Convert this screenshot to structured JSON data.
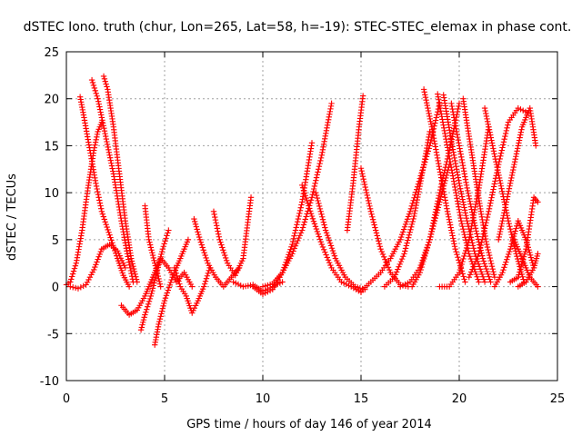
{
  "chart_data": {
    "type": "scatter",
    "title": "dSTEC Iono. truth (chur, Lon=265, Lat=58, h=-19): STEC-STEC_elemax in phase cont.",
    "xlabel": "GPS time / hours of day 146 of year 2014",
    "ylabel": "dSTEC  / TECUs",
    "xlim": [
      0,
      25
    ],
    "ylim": [
      -10,
      25
    ],
    "x_ticks": [
      0,
      5,
      10,
      15,
      20,
      25
    ],
    "y_ticks": [
      -10,
      -5,
      0,
      5,
      10,
      15,
      20,
      25
    ],
    "grid": true,
    "marker": "plus",
    "color": "#ff0000",
    "arcs": [
      {
        "x": [
          0.0,
          0.2,
          0.5,
          0.8,
          1.1,
          1.4,
          1.6,
          1.8
        ],
        "y": [
          0.2,
          0.5,
          2.5,
          6.0,
          10.5,
          14.5,
          16.5,
          17.5
        ]
      },
      {
        "x": [
          0.7,
          0.9,
          1.2,
          1.5,
          1.8,
          2.2,
          2.6,
          2.9,
          3.2
        ],
        "y": [
          20.2,
          18.0,
          14.5,
          11.0,
          8.0,
          5.5,
          3.0,
          1.2,
          0.0
        ]
      },
      {
        "x": [
          1.3,
          1.6,
          2.0,
          2.4,
          2.8,
          3.1,
          3.4
        ],
        "y": [
          22.0,
          20.0,
          16.0,
          12.0,
          7.0,
          3.5,
          0.5
        ]
      },
      {
        "x": [
          1.9,
          2.1,
          2.4,
          2.7,
          3.0,
          3.3,
          3.6
        ],
        "y": [
          22.4,
          21.0,
          17.0,
          12.0,
          7.0,
          3.0,
          0.5
        ]
      },
      {
        "x": [
          0.2,
          0.6,
          1.0,
          1.4,
          1.8,
          2.2,
          2.6,
          3.0
        ],
        "y": [
          0.0,
          -0.2,
          0.2,
          1.8,
          4.0,
          4.5,
          3.8,
          2.0
        ]
      },
      {
        "x": [
          2.8,
          3.2,
          3.6,
          4.0,
          4.4,
          4.8,
          5.2,
          5.6,
          6.0,
          6.4
        ],
        "y": [
          -2.0,
          -3.0,
          -2.5,
          -1.0,
          1.0,
          3.0,
          2.0,
          0.5,
          1.5,
          0.0
        ]
      },
      {
        "x": [
          3.8,
          4.0,
          4.3,
          4.6,
          4.9,
          5.2
        ],
        "y": [
          -4.6,
          -3.0,
          -1.0,
          1.5,
          4.0,
          6.0
        ]
      },
      {
        "x": [
          4.5,
          4.7,
          5.0,
          5.4,
          5.8,
          6.2
        ],
        "y": [
          -6.2,
          -4.0,
          -1.5,
          1.0,
          3.0,
          5.0
        ]
      },
      {
        "x": [
          4.0,
          4.2,
          4.5,
          4.8
        ],
        "y": [
          8.6,
          5.0,
          2.5,
          0.0
        ]
      },
      {
        "x": [
          5.5,
          5.8,
          6.1,
          6.4,
          6.7,
          7.0,
          7.3
        ],
        "y": [
          2.0,
          0.0,
          -1.0,
          -2.8,
          -1.5,
          0.0,
          2.0
        ]
      },
      {
        "x": [
          6.5,
          6.8,
          7.2,
          7.6,
          8.0,
          8.4,
          8.8
        ],
        "y": [
          7.2,
          5.0,
          2.5,
          1.0,
          0.0,
          1.0,
          2.0
        ]
      },
      {
        "x": [
          7.5,
          7.8,
          8.2,
          8.6,
          9.0,
          9.4
        ],
        "y": [
          8.0,
          5.0,
          2.5,
          1.2,
          3.0,
          9.5
        ]
      },
      {
        "x": [
          8.5,
          9.0,
          9.5,
          10.0,
          10.5,
          11.0
        ],
        "y": [
          0.5,
          0.0,
          0.2,
          -0.5,
          0.0,
          0.5
        ]
      },
      {
        "x": [
          9.5,
          10.0,
          10.5,
          11.0,
          11.5,
          12.0,
          12.5
        ],
        "y": [
          0.0,
          -0.8,
          -0.3,
          1.5,
          4.5,
          9.0,
          15.3
        ]
      },
      {
        "x": [
          10.0,
          10.5,
          11.0,
          11.5,
          12.0,
          12.5,
          13.0,
          13.5
        ],
        "y": [
          0.0,
          0.3,
          1.5,
          3.5,
          6.0,
          9.5,
          14.0,
          19.5
        ]
      },
      {
        "x": [
          12.0,
          12.5,
          13.0,
          13.5,
          14.0,
          14.5,
          15.0
        ],
        "y": [
          10.8,
          7.5,
          4.5,
          2.0,
          0.5,
          0.0,
          -0.6
        ]
      },
      {
        "x": [
          12.7,
          13.2,
          13.7,
          14.2,
          14.7,
          15.2
        ],
        "y": [
          10.0,
          6.0,
          3.0,
          1.0,
          0.0,
          -0.3
        ]
      },
      {
        "x": [
          15.0,
          15.5,
          16.0,
          16.5,
          17.0,
          17.4
        ],
        "y": [
          12.6,
          8.0,
          4.0,
          1.5,
          0.2,
          0.0
        ]
      },
      {
        "x": [
          14.3,
          14.6,
          14.9,
          15.1
        ],
        "y": [
          6.0,
          11.0,
          17.0,
          20.3
        ]
      },
      {
        "x": [
          15.0,
          15.5,
          16.0,
          16.5,
          17.0,
          17.5,
          18.0,
          18.5,
          19.0
        ],
        "y": [
          -0.5,
          0.5,
          1.5,
          3.0,
          5.0,
          8.0,
          11.5,
          15.0,
          19.5
        ]
      },
      {
        "x": [
          16.2,
          16.7,
          17.2,
          17.7,
          18.2,
          18.5
        ],
        "y": [
          0.0,
          1.0,
          3.5,
          7.5,
          13.0,
          16.5
        ]
      },
      {
        "x": [
          17.0,
          17.5,
          18.0,
          18.5,
          19.0,
          19.5
        ],
        "y": [
          0.0,
          0.5,
          2.0,
          5.0,
          9.0,
          13.0
        ]
      },
      {
        "x": [
          17.6,
          18.0,
          18.5,
          19.0,
          19.5,
          20.0
        ],
        "y": [
          0.0,
          1.5,
          5.0,
          10.0,
          14.5,
          19.5
        ]
      },
      {
        "x": [
          18.2,
          18.6,
          19.0,
          19.4,
          19.8,
          20.3
        ],
        "y": [
          21.0,
          17.0,
          12.5,
          8.0,
          4.0,
          0.5
        ]
      },
      {
        "x": [
          18.9,
          19.3,
          19.7,
          20.1,
          20.5,
          21.0
        ],
        "y": [
          20.5,
          16.0,
          11.5,
          7.0,
          3.5,
          0.5
        ]
      },
      {
        "x": [
          19.2,
          19.6,
          20.0,
          20.4,
          20.8,
          21.3
        ],
        "y": [
          20.4,
          15.5,
          11.0,
          7.0,
          3.5,
          0.5
        ]
      },
      {
        "x": [
          19.6,
          20.0,
          20.4,
          20.8,
          21.2,
          21.6
        ],
        "y": [
          19.5,
          15.0,
          10.5,
          6.5,
          3.0,
          0.5
        ]
      },
      {
        "x": [
          20.2,
          20.5,
          20.8,
          21.1,
          21.4,
          21.8
        ],
        "y": [
          20.0,
          16.0,
          12.0,
          8.0,
          4.5,
          1.0
        ]
      },
      {
        "x": [
          19.0,
          19.5,
          20.0,
          20.5,
          21.0,
          21.5
        ],
        "y": [
          0.0,
          0.0,
          1.5,
          5.0,
          10.5,
          17.0
        ]
      },
      {
        "x": [
          20.5,
          21.0,
          21.5,
          22.0,
          22.5,
          23.0,
          23.5
        ],
        "y": [
          1.0,
          3.5,
          8.0,
          13.0,
          17.5,
          19.0,
          18.5
        ]
      },
      {
        "x": [
          21.3,
          21.7,
          22.1,
          22.5,
          22.9,
          23.3
        ],
        "y": [
          19.0,
          15.0,
          11.0,
          7.0,
          3.5,
          0.5
        ]
      },
      {
        "x": [
          21.8,
          22.2,
          22.6,
          23.0,
          23.4,
          23.8
        ],
        "y": [
          0.0,
          1.5,
          4.0,
          7.0,
          5.0,
          2.0
        ]
      },
      {
        "x": [
          22.0,
          22.4,
          22.8,
          23.2,
          23.6,
          23.9
        ],
        "y": [
          5.0,
          9.0,
          13.0,
          17.0,
          19.0,
          15.0
        ]
      },
      {
        "x": [
          22.6,
          23.0,
          23.4,
          23.8,
          24.0
        ],
        "y": [
          0.5,
          1.0,
          4.0,
          9.5,
          9.0
        ]
      },
      {
        "x": [
          23.0,
          23.4,
          23.8,
          24.0
        ],
        "y": [
          0.0,
          0.5,
          2.0,
          3.5
        ]
      },
      {
        "x": [
          22.8,
          23.2,
          23.6,
          24.0
        ],
        "y": [
          5.0,
          3.0,
          1.0,
          0.0
        ]
      }
    ]
  }
}
